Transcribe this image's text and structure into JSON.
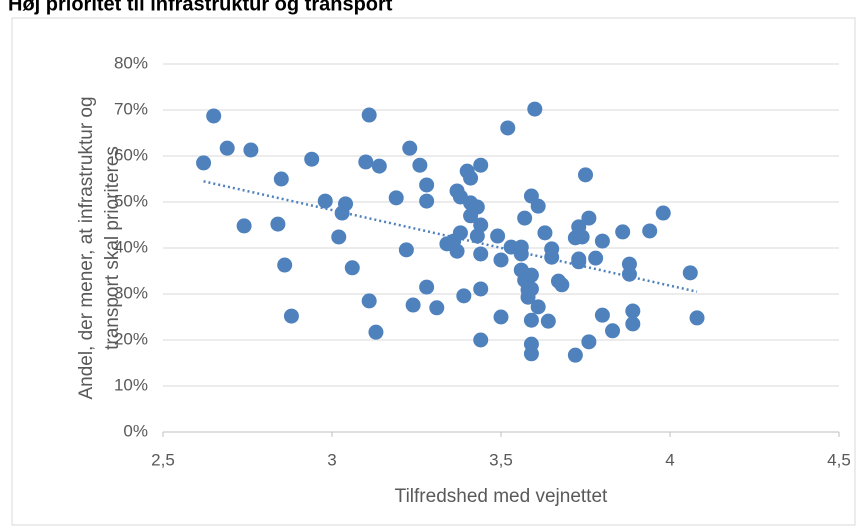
{
  "chart_data": {
    "type": "scatter",
    "title": "Høj prioritet til infrastruktur og transport",
    "xlabel": "Tilfredshed med vejnettet",
    "ylabel": [
      "Andel, der mener, at infrastruktur og",
      "transport skal prioriteres"
    ],
    "color": "#4f81bd",
    "grid": true,
    "xlim": [
      2.5,
      4.5
    ],
    "xticks": [
      {
        "value": 2.5,
        "label": "2,5"
      },
      3,
      {
        "value": 3.5,
        "label": "3,5"
      },
      4,
      {
        "value": 4.5,
        "label": "4,5"
      }
    ],
    "ylim": [
      0,
      80
    ],
    "yticks": [
      {
        "value": 0,
        "label": "0%"
      },
      {
        "value": 10,
        "label": "10%"
      },
      {
        "value": 20,
        "label": "20%"
      },
      {
        "value": 30,
        "label": "30%"
      },
      {
        "value": 40,
        "label": "40%"
      },
      {
        "value": 50,
        "label": "50%"
      },
      {
        "value": 60,
        "label": "60%"
      },
      {
        "value": 70,
        "label": "70%"
      },
      {
        "value": 80,
        "label": "80%"
      }
    ],
    "x": [
      2.62,
      2.65,
      2.69,
      2.76,
      2.74,
      2.84,
      2.85,
      2.86,
      2.88,
      2.94,
      2.98,
      3.02,
      3.04,
      3.03,
      3.06,
      3.1,
      3.11,
      3.11,
      3.13,
      3.14,
      3.19,
      3.22,
      3.23,
      3.24,
      3.26,
      3.28,
      3.28,
      3.28,
      3.31,
      3.34,
      3.36,
      3.37,
      3.37,
      3.38,
      3.38,
      3.39,
      3.4,
      3.41,
      3.41,
      3.41,
      3.43,
      3.43,
      3.44,
      3.44,
      3.44,
      3.44,
      3.44,
      3.49,
      3.5,
      3.5,
      3.52,
      3.53,
      3.56,
      3.56,
      3.56,
      3.57,
      3.57,
      3.58,
      3.58,
      3.59,
      3.59,
      3.59,
      3.59,
      3.59,
      3.59,
      3.6,
      3.61,
      3.61,
      3.63,
      3.64,
      3.65,
      3.65,
      3.67,
      3.68,
      3.72,
      3.72,
      3.73,
      3.73,
      3.73,
      3.74,
      3.75,
      3.76,
      3.76,
      3.78,
      3.8,
      3.8,
      3.83,
      3.86,
      3.88,
      3.88,
      3.89,
      3.89,
      3.94,
      3.98,
      4.06,
      4.08
    ],
    "values": [
      58.5,
      68.7,
      61.7,
      61.3,
      44.8,
      45.2,
      55.0,
      36.3,
      25.2,
      59.3,
      50.2,
      42.4,
      49.6,
      47.6,
      35.7,
      58.7,
      28.5,
      68.9,
      21.7,
      57.8,
      50.9,
      39.6,
      61.7,
      27.6,
      58.0,
      53.7,
      31.5,
      50.2,
      27.0,
      40.9,
      41.5,
      39.3,
      52.4,
      51.1,
      43.3,
      29.6,
      56.7,
      55.2,
      49.8,
      47.0,
      48.9,
      42.6,
      45.0,
      38.7,
      31.1,
      58.0,
      20.0,
      42.6,
      37.4,
      25.0,
      66.1,
      40.2,
      40.2,
      38.7,
      35.2,
      46.5,
      33.0,
      30.9,
      29.3,
      24.3,
      51.3,
      19.1,
      17.0,
      31.1,
      34.1,
      70.2,
      49.1,
      27.2,
      43.3,
      24.1,
      39.8,
      38.0,
      32.8,
      32.0,
      16.7,
      42.2,
      37.6,
      37.0,
      44.6,
      42.4,
      55.9,
      46.5,
      19.6,
      37.8,
      25.4,
      41.5,
      22.0,
      43.5,
      36.5,
      34.3,
      26.3,
      23.5,
      43.7,
      47.6,
      34.6,
      24.8
    ],
    "trendline": {
      "x": [
        2.62,
        4.08
      ],
      "values": [
        54.5,
        30.5
      ]
    }
  }
}
